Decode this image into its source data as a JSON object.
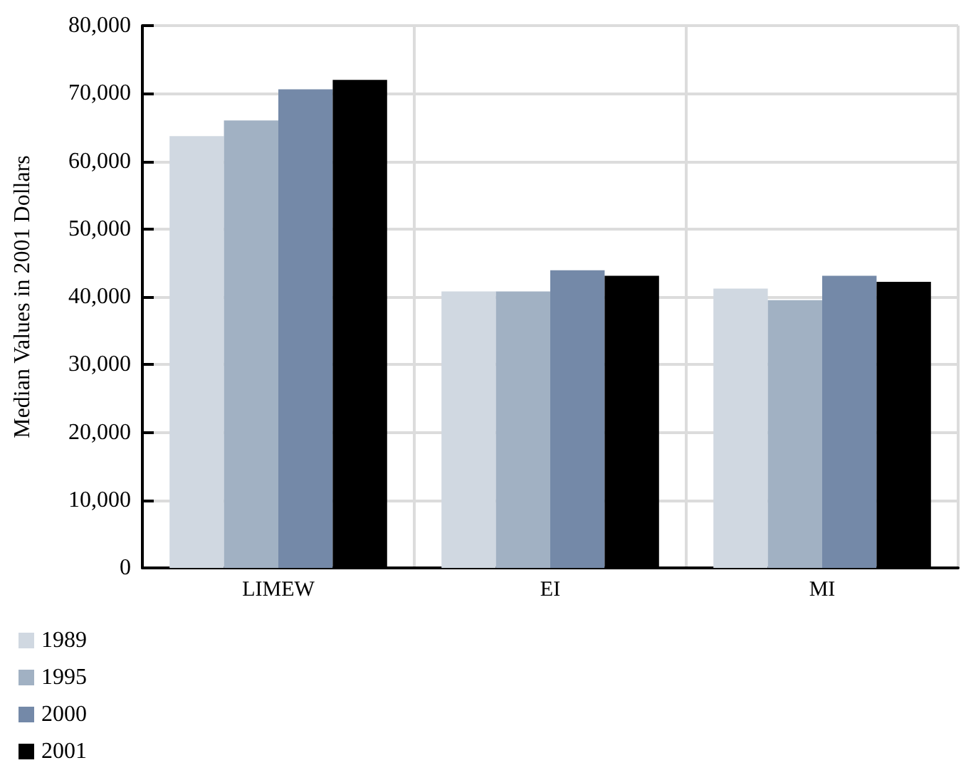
{
  "chart_data": {
    "type": "bar",
    "ylabel": "Median Values in 2001 Dollars",
    "categories": [
      "LIMEW",
      "EI",
      "MI"
    ],
    "series": [
      {
        "name": "1989",
        "color": "#d0d8e1",
        "values": [
          63700,
          40800,
          41200
        ]
      },
      {
        "name": "1995",
        "color": "#a1b1c3",
        "values": [
          66000,
          40800,
          39500
        ]
      },
      {
        "name": "2000",
        "color": "#7489a8",
        "values": [
          70600,
          43900,
          43100
        ]
      },
      {
        "name": "2001",
        "color": "#000000",
        "values": [
          72000,
          43100,
          42200
        ]
      }
    ],
    "ylim": [
      0,
      80000
    ],
    "yticks": [
      0,
      {
        "value": 10000,
        "label": "10,000"
      },
      {
        "value": 20000,
        "label": "20,000"
      },
      {
        "value": 30000,
        "label": "30,000"
      },
      {
        "value": 40000,
        "label": "40,000"
      },
      {
        "value": 50000,
        "label": "50,000"
      },
      {
        "value": 60000,
        "label": "60,000"
      },
      {
        "value": 70000,
        "label": "70,000"
      },
      {
        "value": 80000,
        "label": "80,000"
      }
    ],
    "grid": true,
    "legend": "bottom left"
  }
}
